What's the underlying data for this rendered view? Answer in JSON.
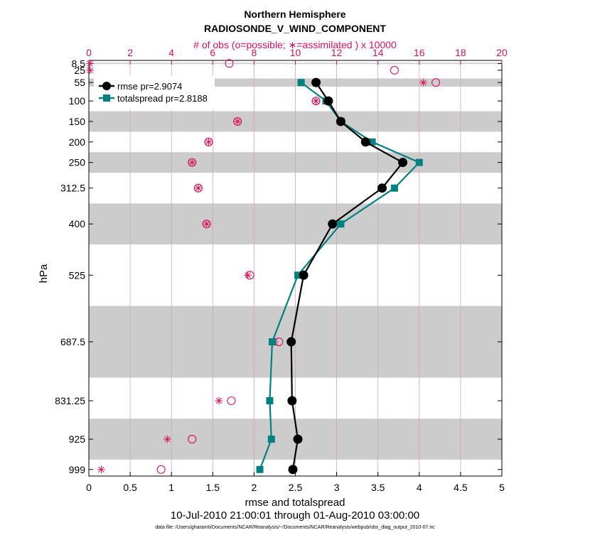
{
  "chart_data": {
    "type": "line",
    "title": "Northern Hemisphere",
    "subtitle": "RADIOSONDE_V_WIND_COMPONENT",
    "top_axis_label": "# of obs (o=possible; ∗=assimilated ) x 10000",
    "xlabel": "rmse and totalspread",
    "ylabel": "hPa",
    "date_range": "10-Jul-2010 21:00:01 through 01-Aug-2010 03:00:00",
    "footnote": "data file: /Users/gharamti/Documents/NCAR/Reanalysis/~/Documents/NCAR/Reanalysis/webpub/obs_diag_output_2010-07.nc",
    "xlim": [
      0,
      5
    ],
    "x_ticks": [
      "0",
      "0.5",
      "1",
      "1.5",
      "2",
      "2.5",
      "3",
      "3.5",
      "4",
      "4.5",
      "5"
    ],
    "top_xlim": [
      0,
      20
    ],
    "top_ticks": [
      "0",
      "2",
      "4",
      "6",
      "8",
      "10",
      "12",
      "14",
      "16",
      "18",
      "20"
    ],
    "levels": [
      8.5,
      25,
      55,
      100,
      150,
      200,
      250,
      312.5,
      400,
      525,
      687.5,
      831.25,
      925,
      999
    ],
    "level_labels": [
      "8.5",
      "25",
      "55",
      "100",
      "150",
      "200",
      "250",
      "312.5",
      "400",
      "525",
      "687.5",
      "831.25",
      "925",
      "999"
    ],
    "series": [
      {
        "name": "rmse",
        "legend": "rmse pr=2.9074",
        "color": "#000000",
        "marker": "circle",
        "levels": [
          55,
          100,
          150,
          200,
          250,
          312.5,
          400,
          525,
          687.5,
          831.25,
          925,
          999
        ],
        "values": [
          2.75,
          2.9,
          3.05,
          3.35,
          3.8,
          3.55,
          2.95,
          2.6,
          2.45,
          2.46,
          2.53,
          2.47
        ]
      },
      {
        "name": "totalspread",
        "legend": "totalspread pr=2.8188",
        "color": "#008080",
        "marker": "square",
        "levels": [
          55,
          100,
          150,
          200,
          250,
          312.5,
          400,
          525,
          687.5,
          831.25,
          925,
          999
        ],
        "values": [
          2.57,
          2.87,
          3.05,
          3.43,
          4.0,
          3.7,
          3.05,
          2.53,
          2.22,
          2.19,
          2.21,
          2.07
        ]
      }
    ],
    "obs_possible": {
      "levels": [
        8.5,
        25,
        55,
        100,
        150,
        200,
        250,
        312.5,
        400,
        525,
        687.5,
        831.25,
        925,
        999
      ],
      "values": [
        6.8,
        14.8,
        16.8,
        11.0,
        7.2,
        5.8,
        5.0,
        5.3,
        5.7,
        7.8,
        9.2,
        6.9,
        5.0,
        3.5
      ]
    },
    "obs_assimilated": {
      "levels": [
        8.5,
        25,
        55,
        100,
        150,
        200,
        250,
        312.5,
        400,
        525,
        687.5,
        831.25,
        925,
        999
      ],
      "values": [
        0.05,
        0.05,
        16.2,
        11.0,
        7.2,
        5.8,
        5.0,
        5.3,
        5.7,
        7.7,
        9.0,
        6.3,
        3.8,
        0.6
      ]
    },
    "bands": [
      [
        7,
        10
      ],
      [
        45,
        65
      ],
      [
        125,
        175
      ],
      [
        225,
        275
      ],
      [
        350,
        450
      ],
      [
        600,
        775
      ],
      [
        875,
        975
      ]
    ],
    "colors": {
      "band": "#cccccc",
      "obs": "#d6125a",
      "rmse": "#000000",
      "spread": "#008080",
      "gridline": "#d8a4b8"
    }
  }
}
